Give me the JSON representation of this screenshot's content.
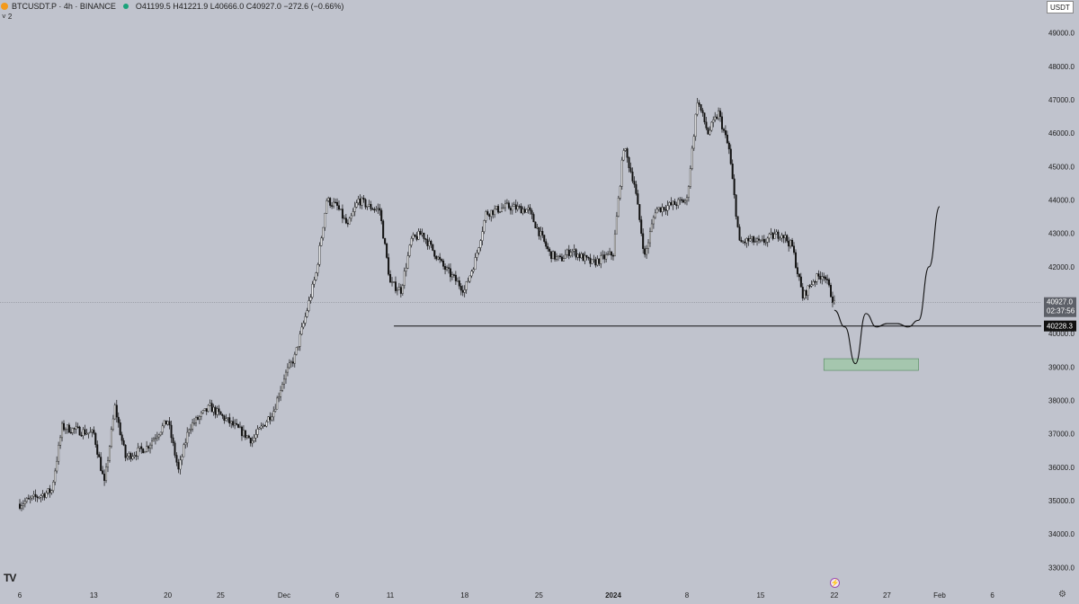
{
  "header": {
    "symbol": "BTCUSDT.P · 4h · BINANCE",
    "ohlc": "O41199.5 H41221.9 L40666.0 C40927.0 −272.6 (−0.66%)",
    "indicator_count": "˅ 2"
  },
  "currency_button": "USDT",
  "logo_text": "TV",
  "footer": {
    "flash_icon": "lightning-icon",
    "settings_icon": "gear-icon"
  },
  "chart_data": {
    "type": "candlestick",
    "symbol": "BTCUSDT.P",
    "timeframe": "4h",
    "exchange": "BINANCE",
    "y_range": [
      32500,
      49500
    ],
    "y_ticks": [
      33000,
      34000,
      35000,
      36000,
      37000,
      38000,
      39000,
      40000,
      41000,
      42000,
      43000,
      44000,
      45000,
      46000,
      47000,
      48000,
      49000
    ],
    "y_tick_labels": [
      "33000.0",
      "34000.0",
      "35000.0",
      "36000.0",
      "37000.0",
      "38000.0",
      "39000.0",
      "40000.0",
      "41000.0",
      "42000.0",
      "43000.0",
      "44000.0",
      "45000.0",
      "46000.0",
      "47000.0",
      "48000.0",
      "49000.0"
    ],
    "x_tick_labels": [
      "6",
      "13",
      "20",
      "25",
      "Dec",
      "6",
      "11",
      "18",
      "25",
      "2024",
      "8",
      "15",
      "22",
      "27",
      "Feb",
      "6"
    ],
    "last_price_label": "40927.0",
    "countdown": "02:37:56",
    "support_level": 40228.3,
    "support_label": "40228.3",
    "price_path": [
      [
        "Nov 6",
        34900
      ],
      [
        "Nov 9",
        35300
      ],
      [
        "Nov 10",
        37200
      ],
      [
        "Nov 13",
        37000
      ],
      [
        "Nov 14",
        35500
      ],
      [
        "Nov 15",
        37800
      ],
      [
        "Nov 16",
        36300
      ],
      [
        "Nov 18",
        36600
      ],
      [
        "Nov 20",
        37400
      ],
      [
        "Nov 21",
        35900
      ],
      [
        "Nov 22",
        37200
      ],
      [
        "Nov 24",
        37800
      ],
      [
        "Nov 26",
        37300
      ],
      [
        "Nov 28",
        36800
      ],
      [
        "Nov 30",
        37700
      ],
      [
        "Dec 1",
        38700
      ],
      [
        "Dec 2",
        39300
      ],
      [
        "Dec 3",
        40500
      ],
      [
        "Dec 4",
        41800
      ],
      [
        "Dec 5",
        44000
      ],
      [
        "Dec 6",
        43800
      ],
      [
        "Dec 7",
        43200
      ],
      [
        "Dec 8",
        44000
      ],
      [
        "Dec 9",
        43800
      ],
      [
        "Dec 10",
        43700
      ],
      [
        "Dec 11",
        41500
      ],
      [
        "Dec 12",
        41300
      ],
      [
        "Dec 13",
        42800
      ],
      [
        "Dec 14",
        43000
      ],
      [
        "Dec 16",
        42000
      ],
      [
        "Dec 18",
        41300
      ],
      [
        "Dec 19",
        42200
      ],
      [
        "Dec 20",
        43600
      ],
      [
        "Dec 22",
        43800
      ],
      [
        "Dec 24",
        43700
      ],
      [
        "Dec 26",
        42400
      ],
      [
        "Dec 27",
        42200
      ],
      [
        "Dec 28",
        42500
      ],
      [
        "Dec 30",
        42100
      ],
      [
        "Jan 1",
        42400
      ],
      [
        "Jan 2",
        45600
      ],
      [
        "Jan 3",
        44500
      ],
      [
        "Jan 4",
        42300
      ],
      [
        "Jan 5",
        43700
      ],
      [
        "Jan 6",
        43800
      ],
      [
        "Jan 8",
        44000
      ],
      [
        "Jan 9",
        47000
      ],
      [
        "Jan 10",
        46000
      ],
      [
        "Jan 11",
        46600
      ],
      [
        "Jan 12",
        45500
      ],
      [
        "Jan 13",
        42700
      ],
      [
        "Jan 14",
        42800
      ],
      [
        "Jan 15",
        42700
      ],
      [
        "Jan 16",
        42900
      ],
      [
        "Jan 17",
        43000
      ],
      [
        "Jan 18",
        42600
      ],
      [
        "Jan 19",
        41100
      ],
      [
        "Jan 20",
        41600
      ],
      [
        "Jan 21",
        41800
      ],
      [
        "Jan 22",
        40900
      ]
    ],
    "projection_path": [
      [
        "Jan 22",
        40700
      ],
      [
        "Jan 23",
        40200
      ],
      [
        "Jan 24",
        39100
      ],
      [
        "Jan 25",
        40600
      ],
      [
        "Jan 26",
        40200
      ],
      [
        "Jan 27",
        40300
      ],
      [
        "Jan 28",
        40300
      ],
      [
        "Jan 29",
        40200
      ],
      [
        "Jan 30",
        40400
      ],
      [
        "Jan 31",
        42000
      ],
      [
        "Feb 1",
        43800
      ]
    ],
    "target_zone": {
      "from": "Jan 21",
      "to": "Jan 30",
      "low": 38900,
      "high": 39250
    },
    "grid": false,
    "legend": "none"
  }
}
